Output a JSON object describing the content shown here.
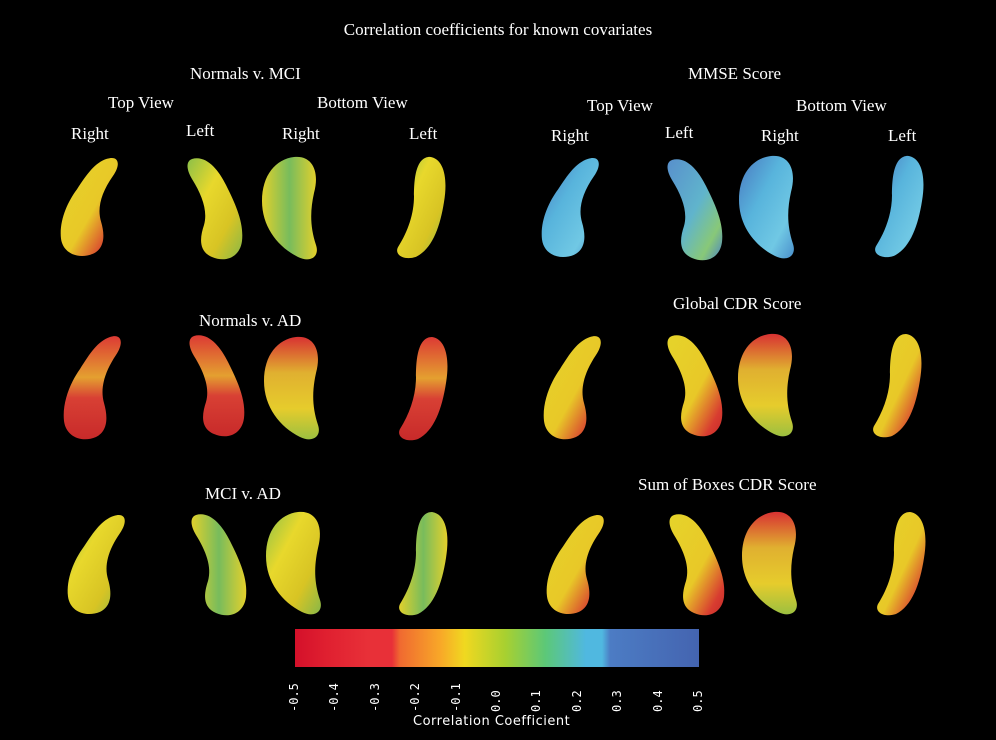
{
  "title": "Correlation coefficients for known covariates",
  "panels": {
    "normals_mci": "Normals v. MCI",
    "mmse": "MMSE Score",
    "normals_ad": "Normals v. AD",
    "global_cdr": "Global CDR Score",
    "mci_ad": "MCI v. AD",
    "sob_cdr": "Sum of Boxes CDR Score"
  },
  "views": {
    "top_view": "Top View",
    "bottom_view": "Bottom View",
    "right": "Right",
    "left": "Left"
  },
  "colorbar": {
    "label": "Correlation   Coefficient",
    "ticks": [
      "-0.5",
      "-0.4",
      "-0.3",
      "-0.2",
      "-0.1",
      "0.0",
      "0.1",
      "0.2",
      "0.3",
      "0.4",
      "0.5"
    ],
    "colors": [
      "#d4102a",
      "#e02030",
      "#e83038",
      "#f06a30",
      "#f8a828",
      "#f0d820",
      "#a8d030",
      "#5cc878",
      "#50b8e0",
      "#4c7cc4",
      "#4464b0"
    ]
  },
  "shape_colors": {
    "yellow": "#e4d028",
    "green": "#7cb848",
    "red": "#d43434",
    "blue": "#4ca0d8",
    "cyan": "#68c0e0"
  }
}
